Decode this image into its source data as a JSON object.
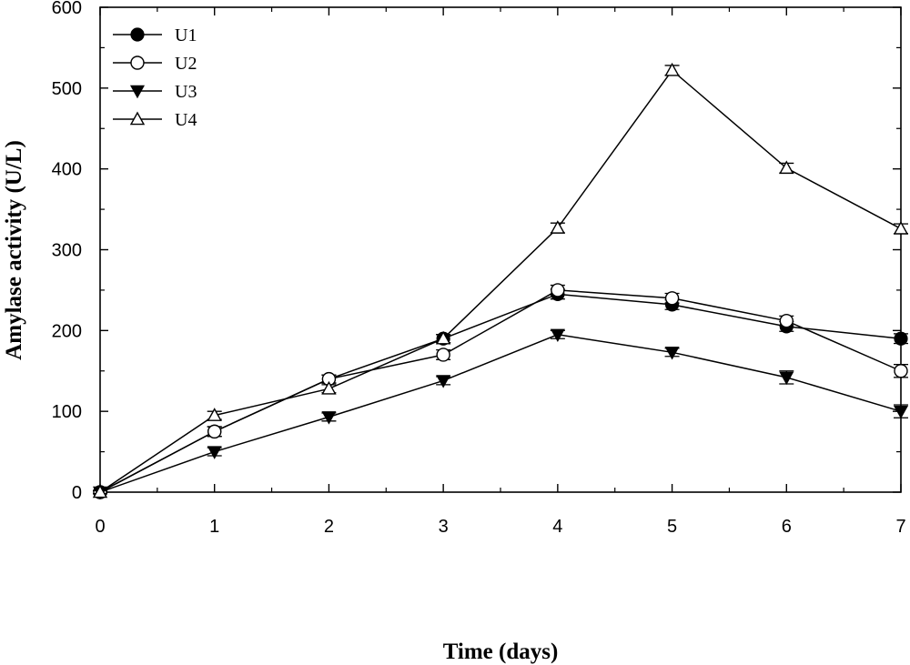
{
  "chart_data": {
    "type": "line",
    "xlabel": "Time (days)",
    "ylabel": "Amylase activity (U/L)",
    "xlim": [
      0,
      7
    ],
    "ylim": [
      0,
      600
    ],
    "x_ticks": [
      0,
      1,
      2,
      3,
      4,
      5,
      6,
      7
    ],
    "y_ticks": [
      0,
      100,
      200,
      300,
      400,
      500,
      600
    ],
    "grid": false,
    "legend_position": "top-left",
    "x": [
      0,
      1,
      2,
      3,
      4,
      5,
      6,
      7
    ],
    "series": [
      {
        "name": "U1",
        "marker": "filled-circle",
        "values": [
          0,
          75,
          140,
          190,
          245,
          232,
          205,
          190
        ],
        "errors": [
          2,
          6,
          5,
          5,
          6,
          6,
          6,
          6
        ]
      },
      {
        "name": "U2",
        "marker": "open-circle",
        "values": [
          0,
          75,
          140,
          170,
          250,
          240,
          212,
          150
        ],
        "errors": [
          2,
          6,
          5,
          6,
          6,
          6,
          6,
          8
        ]
      },
      {
        "name": "U3",
        "marker": "filled-triangle-down",
        "values": [
          0,
          50,
          93,
          138,
          195,
          173,
          142,
          100
        ],
        "errors": [
          2,
          5,
          5,
          5,
          5,
          5,
          8,
          8
        ]
      },
      {
        "name": "U4",
        "marker": "open-triangle-up",
        "values": [
          0,
          95,
          128,
          190,
          327,
          522,
          401,
          326
        ],
        "errors": [
          2,
          5,
          5,
          5,
          6,
          6,
          6,
          6
        ]
      }
    ]
  }
}
